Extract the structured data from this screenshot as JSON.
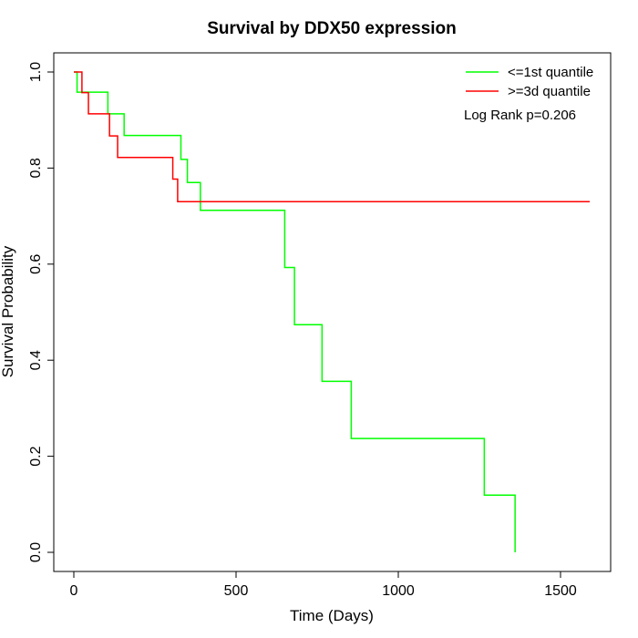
{
  "chart_data": {
    "type": "line",
    "title": "Survival by DDX50 expression",
    "xlabel": "Time (Days)",
    "ylabel": "Survival Probability",
    "xlim": [
      0,
      1650
    ],
    "ylim": [
      0,
      1.0
    ],
    "x_ticks": [
      0,
      500,
      1000,
      1500
    ],
    "x_tick_labels": [
      "0",
      "500",
      "1000",
      "1500"
    ],
    "y_ticks": [
      0.0,
      0.2,
      0.4,
      0.6,
      0.8,
      1.0
    ],
    "y_tick_labels": [
      "0.0",
      "0.2",
      "0.4",
      "0.6",
      "0.8",
      "1.0"
    ],
    "grid": false,
    "legend_position": "top-right",
    "annotation": "Log Rank p=0.206",
    "series": [
      {
        "name": "<=1st quantile",
        "color": "#00ff00",
        "step": true,
        "x": [
          0,
          10,
          105,
          155,
          330,
          350,
          390,
          650,
          680,
          765,
          855,
          1265,
          1360,
          1360
        ],
        "y": [
          1.0,
          0.958,
          0.913,
          0.868,
          0.818,
          0.77,
          0.712,
          0.593,
          0.474,
          0.356,
          0.237,
          0.119,
          0.119,
          0.0
        ]
      },
      {
        "name": ">=3d quantile",
        "color": "#ff0000",
        "step": true,
        "x": [
          0,
          25,
          45,
          110,
          135,
          305,
          320,
          1590
        ],
        "y": [
          1.0,
          0.957,
          0.913,
          0.867,
          0.822,
          0.777,
          0.73,
          0.73
        ]
      }
    ]
  }
}
